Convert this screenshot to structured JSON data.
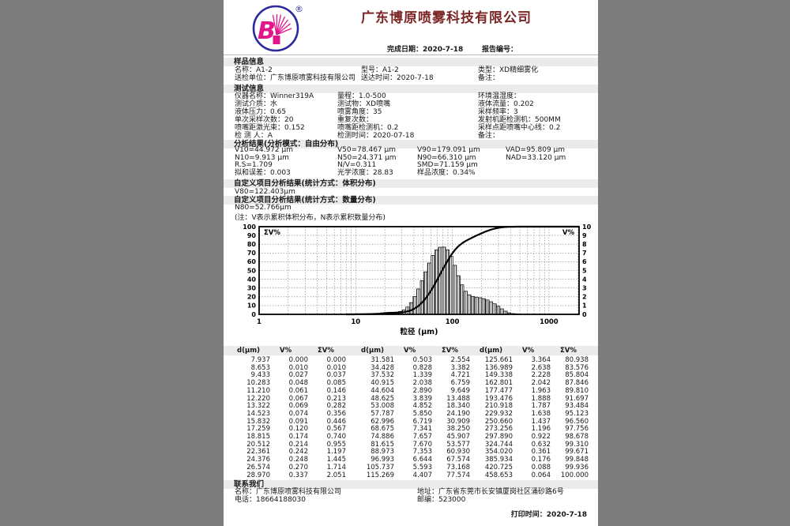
{
  "page": {
    "company": "广东博原喷雾科技有限公司",
    "complete_date": "完成日期：2020-7-18",
    "report_no": "报告编号：",
    "print_time": "打印时间：2020-7-18"
  },
  "logo": {
    "letter": "B",
    "reg": "®",
    "blue": "#2a2a9c",
    "pink": "#e2158c"
  },
  "colors": {
    "title": "#7b2525",
    "band": "#ebebeb",
    "page_bg": "#7d7d7d"
  },
  "sections": {
    "sample": {
      "title": "样品信息",
      "rows": [
        [
          "名称：A1-2",
          "型号：A1-2",
          "类型：XD精细雾化"
        ],
        [
          "送检单位：广东博原喷雾科技有限公司",
          "送达时间：2020-7-18",
          "备注："
        ]
      ]
    },
    "test": {
      "title": "测试信息",
      "rows": [
        [
          "仪器名称：Winner319A",
          "量程：1.0-500",
          "环境温湿度："
        ],
        [
          "测试介质：水",
          "测试物：XD喷嘴",
          "液体流量：0.202"
        ],
        [
          "液体压力：0.65",
          "喷雾角度：35",
          "采样频率：3"
        ],
        [
          "单次采样次数：20",
          "重复次数：",
          "发射机距检测机：500MM"
        ],
        [
          "喷嘴距激光束：0.152",
          "喷嘴距检测机：0.2",
          "采样点距喷嘴中心线：0.2"
        ],
        [
          "检 测 人：A",
          "检测时间：2020-07-18",
          "备注："
        ]
      ]
    },
    "analysis": {
      "title": "分析结果(分析模式：自由分布)",
      "rows": [
        [
          "V10=44.972 μm",
          "V50=78.467 μm",
          "V90=179.091 μm",
          "VAD=95.809 μm"
        ],
        [
          "N10=9.913 μm",
          "N50=24.371 μm",
          "N90=66.310 μm",
          "NAD=33.120 μm"
        ],
        [
          "R.S=1.709",
          "N/V=0.311",
          "SMD=71.159 μm",
          ""
        ],
        [
          "拟和误差：0.003",
          "光学浓度：28.83",
          "样品浓度：0.34%",
          ""
        ]
      ]
    },
    "custom_volume": {
      "title": "自定义项目分析结果(统计方式：体积分布)",
      "value": "V80=122.403μm"
    },
    "custom_number": {
      "title": "自定义项目分析结果(统计方式：数量分布)",
      "value": "N80=52.766μm",
      "note": "(注：V表示累积体积分布，N表示累积数量分布)"
    },
    "contact": {
      "title": "联系我们",
      "rows": [
        [
          "名称：广东博原喷雾科技有限公司",
          "地址：广东省东莞市长安镇厦岗社区涌砂路6号"
        ],
        [
          "电话：18664188030",
          "邮编：523000"
        ]
      ]
    }
  },
  "chart_data": {
    "type": "bar",
    "subtype": "histogram-with-cumulative-line",
    "title": "",
    "xlabel": "粒径 (μm)",
    "left_axis_label": "ΣV%",
    "right_axis_label": "V%",
    "x_scale": "log",
    "xticks": [
      1,
      10,
      100,
      1000
    ],
    "left_ylim": [
      0,
      100
    ],
    "left_ytick_step": 10,
    "right_ylim": [
      0,
      10
    ],
    "right_ytick_step": 1,
    "grid": true,
    "d_um": [
      7.937,
      8.653,
      9.433,
      10.283,
      11.21,
      12.22,
      13.322,
      14.523,
      15.832,
      17.259,
      18.815,
      20.512,
      22.361,
      24.376,
      26.574,
      28.97,
      31.581,
      34.428,
      37.532,
      40.915,
      44.604,
      48.625,
      53.008,
      57.787,
      62.996,
      68.675,
      74.886,
      81.615,
      88.973,
      96.993,
      105.737,
      115.269,
      125.661,
      136.989,
      149.338,
      162.801,
      177.477,
      193.476,
      210.918,
      229.932,
      250.66,
      273.256,
      297.89,
      324.744,
      354.02,
      385.934,
      420.725,
      458.653
    ],
    "v_percent": [
      0.0,
      0.01,
      0.027,
      0.048,
      0.061,
      0.067,
      0.069,
      0.074,
      0.091,
      0.12,
      0.174,
      0.214,
      0.242,
      0.248,
      0.27,
      0.337,
      0.503,
      0.828,
      1.339,
      2.038,
      2.89,
      3.839,
      4.852,
      5.85,
      6.719,
      7.341,
      7.657,
      7.67,
      7.353,
      6.644,
      5.593,
      4.407,
      3.364,
      2.638,
      2.228,
      2.042,
      1.963,
      1.888,
      1.787,
      1.638,
      1.437,
      1.196,
      0.922,
      0.632,
      0.361,
      0.176,
      0.088,
      0.064
    ],
    "cum_v_percent": [
      0.0,
      0.01,
      0.037,
      0.085,
      0.146,
      0.213,
      0.282,
      0.356,
      0.446,
      0.567,
      0.74,
      0.955,
      1.197,
      1.445,
      1.714,
      2.051,
      2.554,
      3.382,
      4.721,
      6.759,
      9.649,
      13.488,
      18.34,
      24.19,
      30.909,
      38.25,
      45.907,
      53.577,
      60.93,
      67.574,
      73.168,
      77.574,
      80.938,
      83.576,
      85.804,
      87.846,
      89.81,
      91.697,
      93.484,
      95.123,
      96.56,
      97.756,
      98.678,
      99.31,
      99.671,
      99.848,
      99.936,
      100.0
    ]
  },
  "table": {
    "group_headers": [
      "d(μm)",
      "V%",
      "ΣV%"
    ],
    "groups": 3,
    "rows_per_group": 16
  }
}
